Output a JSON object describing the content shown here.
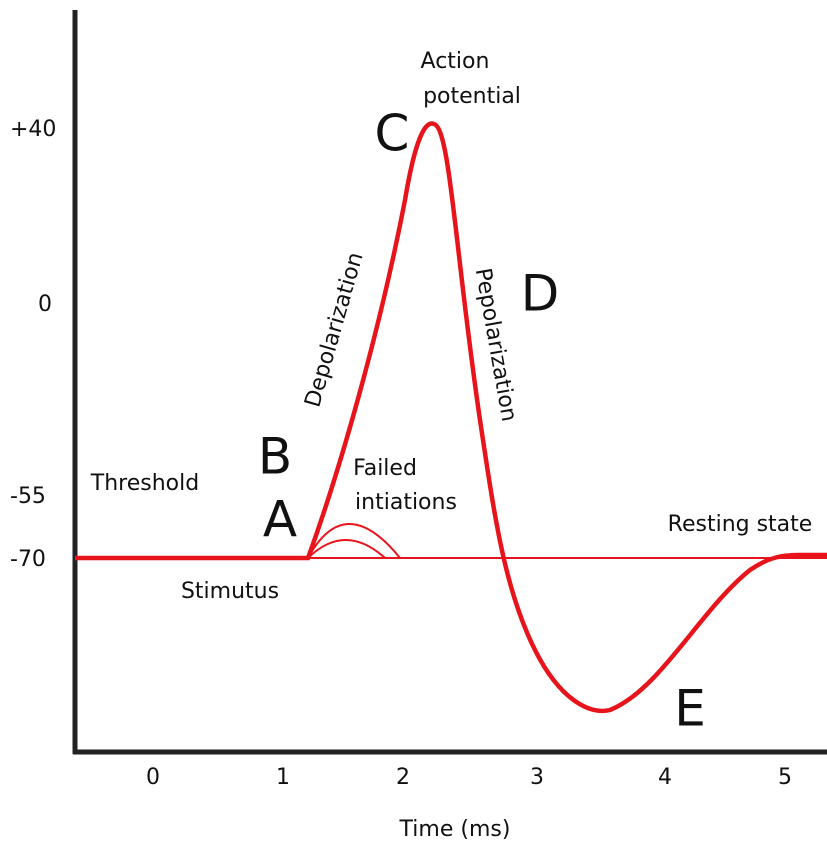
{
  "y_axis": {
    "ticks": [
      "+40",
      "0",
      "-55",
      "-70"
    ]
  },
  "x_axis": {
    "ticks": [
      "0",
      "1",
      "2",
      "3",
      "4",
      "5"
    ],
    "label": "Time (ms)"
  },
  "labels": {
    "action_potential": [
      "Action",
      "potential"
    ],
    "depolarization": "Depolarization",
    "repolarization": "Pepolarization",
    "failed_initiations": [
      "Failed",
      "intiations"
    ],
    "threshold": "Threshold",
    "stimulus": "Stimutus",
    "resting_state": "Resting state"
  },
  "points": [
    "A",
    "B",
    "C",
    "D",
    "E"
  ]
}
